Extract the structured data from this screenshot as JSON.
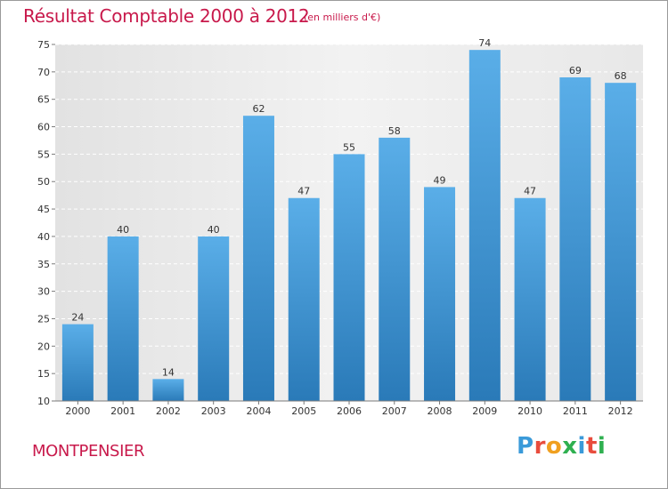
{
  "header": {
    "title": "Résultat Comptable 2000 à 2012",
    "subtitle": "(en milliers d'€)"
  },
  "footer": {
    "town": "MONTPENSIER",
    "logo_letters": [
      "P",
      "r",
      "o",
      "x",
      "i",
      "t",
      "i"
    ],
    "logo_colors": [
      "#3a9ad9",
      "#e84c3d",
      "#f0a020",
      "#2fb050",
      "#3a9ad9",
      "#e84c3d",
      "#2fb050"
    ]
  },
  "colors": {
    "title": "#c8194b",
    "bar_light": "#5aaee8",
    "bar_dark": "#2a7ab8",
    "plot_bg": "#ececec",
    "grid": "#ffffff"
  },
  "chart_data": {
    "type": "bar",
    "title": "Résultat Comptable 2000 à 2012",
    "xlabel": "",
    "ylabel": "",
    "categories": [
      "2000",
      "2001",
      "2002",
      "2003",
      "2004",
      "2005",
      "2006",
      "2007",
      "2008",
      "2009",
      "2010",
      "2011",
      "2012"
    ],
    "values": [
      24,
      40,
      14,
      40,
      62,
      47,
      55,
      58,
      49,
      74,
      47,
      69,
      68
    ],
    "ylim": [
      10,
      75
    ],
    "yticks": [
      "10",
      "15",
      "20",
      "25",
      "30",
      "35",
      "40",
      "45",
      "50",
      "55",
      "60",
      "65",
      "70",
      "75"
    ],
    "grid": true
  }
}
